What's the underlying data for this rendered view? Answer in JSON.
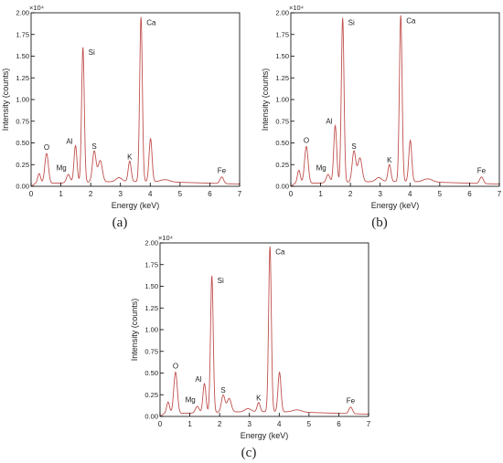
{
  "line_color": "#c0504d",
  "chart_data": [
    {
      "type": "line",
      "panel_label": "(a)",
      "xlabel": "Energy (keV)",
      "ylabel": "Intensity (counts)",
      "y_multiplier_label": "×10⁴",
      "xlim": [
        0,
        7
      ],
      "ylim": [
        0,
        2.0
      ],
      "x_ticks": [
        "0",
        "1",
        "2",
        "3",
        "4",
        "5",
        "6",
        "7"
      ],
      "y_ticks": [
        "0.00",
        "0.25",
        "0.50",
        "0.75",
        "1.00",
        "1.25",
        "1.50",
        "1.75",
        "2.00"
      ],
      "grid": false,
      "baseline": 0.04,
      "peaks": [
        {
          "x": 0.27,
          "y": 0.14,
          "w": 0.05
        },
        {
          "x": 0.52,
          "y": 0.37,
          "w": 0.06
        },
        {
          "x": 1.25,
          "y": 0.12,
          "w": 0.06
        },
        {
          "x": 1.49,
          "y": 0.45,
          "w": 0.05
        },
        {
          "x": 1.74,
          "y": 1.58,
          "w": 0.045
        },
        {
          "x": 2.12,
          "y": 0.38,
          "w": 0.06
        },
        {
          "x": 2.32,
          "y": 0.27,
          "w": 0.07
        },
        {
          "x": 2.95,
          "y": 0.07,
          "w": 0.1
        },
        {
          "x": 3.31,
          "y": 0.26,
          "w": 0.05
        },
        {
          "x": 3.69,
          "y": 1.92,
          "w": 0.045
        },
        {
          "x": 4.01,
          "y": 0.52,
          "w": 0.05
        },
        {
          "x": 4.5,
          "y": 0.05,
          "w": 0.15
        },
        {
          "x": 6.4,
          "y": 0.1,
          "w": 0.06
        }
      ],
      "annotations": [
        {
          "text": "O",
          "x": 0.52,
          "y": 0.37
        },
        {
          "text": "Mg",
          "x": 1.25,
          "y": 0.12
        },
        {
          "text": "Al",
          "x": 1.49,
          "y": 0.45
        },
        {
          "text": "Si",
          "x": 1.74,
          "y": 1.58
        },
        {
          "text": "S",
          "x": 2.12,
          "y": 0.38
        },
        {
          "text": "K",
          "x": 3.31,
          "y": 0.26
        },
        {
          "text": "Ca",
          "x": 3.69,
          "y": 1.92
        },
        {
          "text": "Fe",
          "x": 6.4,
          "y": 0.1
        }
      ]
    },
    {
      "type": "line",
      "panel_label": "(b)",
      "xlabel": "Energy (keV)",
      "ylabel": "Intensity (counts)",
      "y_multiplier_label": "×10⁴",
      "xlim": [
        0,
        7
      ],
      "ylim": [
        0,
        2.0
      ],
      "x_ticks": [
        "0",
        "1",
        "2",
        "3",
        "4",
        "5",
        "6",
        "7"
      ],
      "y_ticks": [
        "0.00",
        "0.25",
        "0.50",
        "0.75",
        "1.00",
        "1.25",
        "1.50",
        "1.75",
        "2.00"
      ],
      "grid": false,
      "baseline": 0.04,
      "peaks": [
        {
          "x": 0.27,
          "y": 0.18,
          "w": 0.05
        },
        {
          "x": 0.52,
          "y": 0.45,
          "w": 0.06
        },
        {
          "x": 1.25,
          "y": 0.12,
          "w": 0.06
        },
        {
          "x": 1.49,
          "y": 0.68,
          "w": 0.05
        },
        {
          "x": 1.74,
          "y": 1.92,
          "w": 0.045
        },
        {
          "x": 2.12,
          "y": 0.38,
          "w": 0.06
        },
        {
          "x": 2.32,
          "y": 0.3,
          "w": 0.07
        },
        {
          "x": 2.95,
          "y": 0.07,
          "w": 0.1
        },
        {
          "x": 3.31,
          "y": 0.22,
          "w": 0.05
        },
        {
          "x": 3.69,
          "y": 1.94,
          "w": 0.045
        },
        {
          "x": 4.01,
          "y": 0.5,
          "w": 0.05
        },
        {
          "x": 4.6,
          "y": 0.06,
          "w": 0.15
        },
        {
          "x": 6.4,
          "y": 0.1,
          "w": 0.06
        }
      ],
      "annotations": [
        {
          "text": "O",
          "x": 0.52,
          "y": 0.45
        },
        {
          "text": "Mg",
          "x": 1.25,
          "y": 0.12
        },
        {
          "text": "Al",
          "x": 1.49,
          "y": 0.68
        },
        {
          "text": "Si",
          "x": 1.74,
          "y": 1.92
        },
        {
          "text": "S",
          "x": 2.12,
          "y": 0.38
        },
        {
          "text": "K",
          "x": 3.31,
          "y": 0.22
        },
        {
          "text": "Ca",
          "x": 3.69,
          "y": 1.94
        },
        {
          "text": "Fe",
          "x": 6.4,
          "y": 0.1
        }
      ]
    },
    {
      "type": "line",
      "panel_label": "(c)",
      "xlabel": "Energy (keV)",
      "ylabel": "Intensity (counts)",
      "y_multiplier_label": "×10⁴",
      "xlim": [
        0,
        7
      ],
      "ylim": [
        0,
        2.0
      ],
      "x_ticks": [
        "0",
        "1",
        "2",
        "3",
        "4",
        "5",
        "6",
        "7"
      ],
      "y_ticks": [
        "0.00",
        "0.25",
        "0.50",
        "0.75",
        "1.00",
        "1.25",
        "1.50",
        "1.75",
        "2.00"
      ],
      "grid": false,
      "baseline": 0.04,
      "peaks": [
        {
          "x": 0.27,
          "y": 0.16,
          "w": 0.05
        },
        {
          "x": 0.52,
          "y": 0.5,
          "w": 0.06
        },
        {
          "x": 1.25,
          "y": 0.1,
          "w": 0.06
        },
        {
          "x": 1.49,
          "y": 0.36,
          "w": 0.05
        },
        {
          "x": 1.74,
          "y": 1.6,
          "w": 0.045
        },
        {
          "x": 2.12,
          "y": 0.22,
          "w": 0.06
        },
        {
          "x": 2.32,
          "y": 0.18,
          "w": 0.07
        },
        {
          "x": 2.95,
          "y": 0.06,
          "w": 0.1
        },
        {
          "x": 3.31,
          "y": 0.13,
          "w": 0.05
        },
        {
          "x": 3.69,
          "y": 1.93,
          "w": 0.045
        },
        {
          "x": 4.01,
          "y": 0.48,
          "w": 0.05
        },
        {
          "x": 4.6,
          "y": 0.05,
          "w": 0.15
        },
        {
          "x": 6.4,
          "y": 0.1,
          "w": 0.06
        }
      ],
      "annotations": [
        {
          "text": "O",
          "x": 0.52,
          "y": 0.5
        },
        {
          "text": "Mg",
          "x": 1.25,
          "y": 0.1
        },
        {
          "text": "Al",
          "x": 1.49,
          "y": 0.36
        },
        {
          "text": "Si",
          "x": 1.74,
          "y": 1.6
        },
        {
          "text": "S",
          "x": 2.12,
          "y": 0.22
        },
        {
          "text": "K",
          "x": 3.31,
          "y": 0.13
        },
        {
          "text": "Ca",
          "x": 3.69,
          "y": 1.93
        },
        {
          "text": "Fe",
          "x": 6.4,
          "y": 0.1
        }
      ]
    }
  ]
}
